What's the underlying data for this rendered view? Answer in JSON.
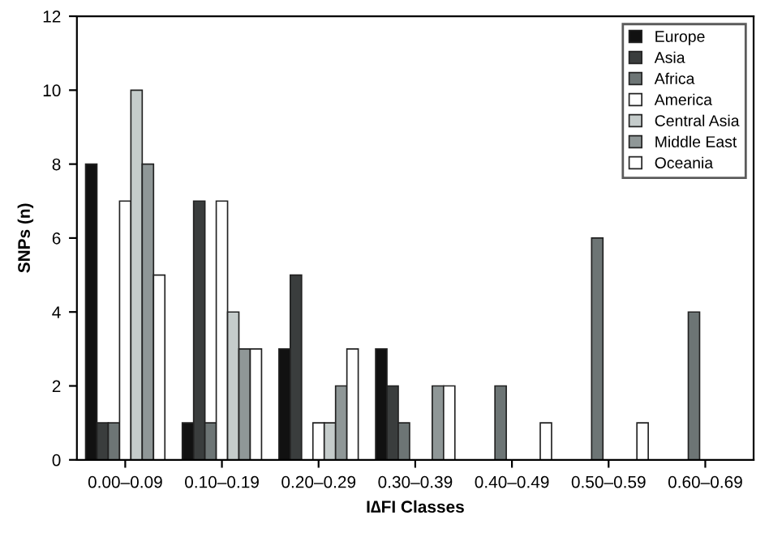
{
  "chart_data": {
    "type": "bar",
    "xlabel": "I∆FI Classes",
    "ylabel": "SNPs (n)",
    "categories": [
      "0.00–0.09",
      "0.10–0.19",
      "0.20–0.29",
      "0.30–0.39",
      "0.40–0.49",
      "0.50–0.59",
      "0.60–0.69"
    ],
    "series": [
      {
        "name": "Europe",
        "color": "#111111",
        "values": [
          8,
          1,
          3,
          3,
          0,
          0,
          0
        ]
      },
      {
        "name": "Asia",
        "color": "#3a3d3d",
        "values": [
          1,
          7,
          5,
          2,
          0,
          0,
          0
        ]
      },
      {
        "name": "Africa",
        "color": "#6d7575",
        "values": [
          1,
          1,
          0,
          1,
          2,
          6,
          4
        ]
      },
      {
        "name": "America",
        "color": "#ffffff",
        "values": [
          7,
          7,
          1,
          0,
          0,
          0,
          0
        ]
      },
      {
        "name": "Central Asia",
        "color": "#c5cccb",
        "values": [
          10,
          4,
          1,
          0,
          0,
          0,
          0
        ]
      },
      {
        "name": "Middle East",
        "color": "#8f9797",
        "values": [
          8,
          3,
          2,
          2,
          0,
          0,
          0
        ]
      },
      {
        "name": "Oceania",
        "color": "#ffffff",
        "values": [
          5,
          3,
          3,
          2,
          1,
          1,
          0
        ]
      }
    ],
    "ylim": [
      0,
      12
    ],
    "yticks": [
      0,
      2,
      4,
      6,
      8,
      10,
      12
    ],
    "grid": false,
    "legend": "top right"
  }
}
